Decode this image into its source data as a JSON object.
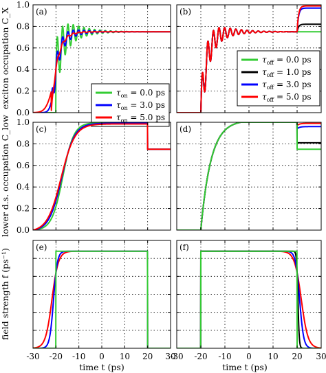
{
  "figure": {
    "ylabels": [
      "exciton occupation C_X",
      "lower d.s. occupation C_low",
      "field strength f (ps⁻¹)"
    ],
    "xlabel": "time t (ps)",
    "colors": {
      "green": "#33cc33",
      "black": "#000000",
      "blue": "#0000ff",
      "red": "#ff0000"
    }
  },
  "chart_data": [
    {
      "panel": "(a)",
      "type": "line",
      "xlim": [
        -30,
        30
      ],
      "ylim": [
        0,
        1
      ],
      "xticks": [
        "-30",
        "-20",
        "-10",
        "0",
        "10",
        "20",
        "30"
      ],
      "yticks": [
        "0.0",
        "0.2",
        "0.4",
        "0.6",
        "0.8",
        "1.0"
      ],
      "grid": true,
      "legend_position": "center-right",
      "series": [
        {
          "name": "τon = 0.0 ps",
          "legend_tau": "τ",
          "legend_sub": "on",
          "legend_rest": " = 0.0 ps",
          "color": "#33cc33",
          "model": {
            "kind": "osc_on",
            "ton": 0.0,
            "final": 0.75,
            "amp": 0.25
          }
        },
        {
          "name": "τon = 3.0 ps",
          "legend_tau": "τ",
          "legend_sub": "on",
          "legend_rest": " = 3.0 ps",
          "color": "#0000ff",
          "model": {
            "kind": "osc_on",
            "ton": 3.0,
            "final": 0.75,
            "amp": 0.1
          }
        },
        {
          "name": "τon = 5.0 ps",
          "legend_tau": "τ",
          "legend_sub": "on",
          "legend_rest": " = 5.0 ps",
          "color": "#ff0000",
          "model": {
            "kind": "osc_on",
            "ton": 5.0,
            "final": 0.75,
            "amp": 0.02
          }
        }
      ]
    },
    {
      "panel": "(b)",
      "type": "line",
      "xlim": [
        -30,
        30
      ],
      "ylim": [
        0,
        1
      ],
      "xticks": [
        "-30",
        "-20",
        "-10",
        "0",
        "10",
        "20",
        "30"
      ],
      "yticks": [
        "0.0",
        "0.2",
        "0.4",
        "0.6",
        "0.8",
        "1.0"
      ],
      "grid": true,
      "legend_position": "center-right",
      "series": [
        {
          "name": "τoff = 0.0 ps",
          "legend_tau": "τ",
          "legend_sub": "off",
          "legend_rest": " = 0.0 ps",
          "color": "#33cc33",
          "model": {
            "kind": "osc_off",
            "final": 0.75
          }
        },
        {
          "name": "τoff = 1.0 ps",
          "legend_tau": "τ",
          "legend_sub": "off",
          "legend_rest": " = 1.0 ps",
          "color": "#000000",
          "model": {
            "kind": "osc_off",
            "final": 0.82
          }
        },
        {
          "name": "τoff = 3.0 ps",
          "legend_tau": "τ",
          "legend_sub": "off",
          "legend_rest": " = 3.0 ps",
          "color": "#0000ff",
          "model": {
            "kind": "osc_off",
            "final": 0.97
          }
        },
        {
          "name": "τoff = 5.0 ps",
          "legend_tau": "τ",
          "legend_sub": "off",
          "legend_rest": " = 5.0 ps",
          "color": "#ff0000",
          "model": {
            "kind": "osc_off",
            "final": 0.99
          }
        }
      ]
    },
    {
      "panel": "(c)",
      "type": "line",
      "xlim": [
        -30,
        30
      ],
      "ylim": [
        0,
        1
      ],
      "xticks": [
        "-30",
        "-20",
        "-10",
        "0",
        "10",
        "20",
        "30"
      ],
      "yticks": [
        "0.0",
        "0.2",
        "0.4",
        "0.6",
        "0.8",
        "1.0"
      ],
      "grid": true,
      "series": [
        {
          "color": "#33cc33",
          "model": {
            "kind": "low_on",
            "ton": 0.0
          }
        },
        {
          "color": "#0000ff",
          "model": {
            "kind": "low_on",
            "ton": 3.0
          }
        },
        {
          "color": "#ff0000",
          "model": {
            "kind": "low_on",
            "ton": 5.0
          }
        }
      ]
    },
    {
      "panel": "(d)",
      "type": "line",
      "xlim": [
        -30,
        30
      ],
      "ylim": [
        0,
        1
      ],
      "xticks": [
        "-30",
        "-20",
        "-10",
        "0",
        "10",
        "20",
        "30"
      ],
      "yticks": [
        "0.0",
        "0.2",
        "0.4",
        "0.6",
        "0.8",
        "1.0"
      ],
      "grid": true,
      "series": [
        {
          "color": "#ff0000",
          "model": {
            "kind": "low_off",
            "final": 0.99
          }
        },
        {
          "color": "#0000ff",
          "model": {
            "kind": "low_off",
            "final": 0.96
          }
        },
        {
          "color": "#000000",
          "model": {
            "kind": "low_off",
            "final": 0.81
          }
        },
        {
          "color": "#33cc33",
          "model": {
            "kind": "low_off",
            "final": 0.75
          }
        }
      ]
    },
    {
      "panel": "(e)",
      "type": "line",
      "xlim": [
        -30,
        30
      ],
      "ylim": [
        0,
        3
      ],
      "xticks": [
        "-30",
        "-20",
        "-10",
        "0",
        "10",
        "20",
        "30"
      ],
      "yticks": [],
      "grid": true,
      "series": [
        {
          "color": "#ff0000",
          "model": {
            "kind": "field_on",
            "ton": 5.0,
            "level": 2.7
          }
        },
        {
          "color": "#0000ff",
          "model": {
            "kind": "field_on",
            "ton": 3.0,
            "level": 2.7
          }
        },
        {
          "color": "#33cc33",
          "model": {
            "kind": "field_on",
            "ton": 0.0,
            "level": 2.7
          }
        }
      ]
    },
    {
      "panel": "(f)",
      "type": "line",
      "xlim": [
        -30,
        30
      ],
      "ylim": [
        0,
        3
      ],
      "xticks": [
        "-30",
        "-20",
        "-10",
        "0",
        "10",
        "20",
        "30"
      ],
      "yticks": [],
      "grid": true,
      "series": [
        {
          "color": "#ff0000",
          "model": {
            "kind": "field_off",
            "toff": 5.0,
            "level": 2.7
          }
        },
        {
          "color": "#0000ff",
          "model": {
            "kind": "field_off",
            "toff": 3.0,
            "level": 2.7
          }
        },
        {
          "color": "#000000",
          "model": {
            "kind": "field_off",
            "toff": 1.0,
            "level": 2.7
          }
        },
        {
          "color": "#33cc33",
          "model": {
            "kind": "field_off",
            "toff": 0.0,
            "level": 2.7
          }
        }
      ]
    }
  ]
}
